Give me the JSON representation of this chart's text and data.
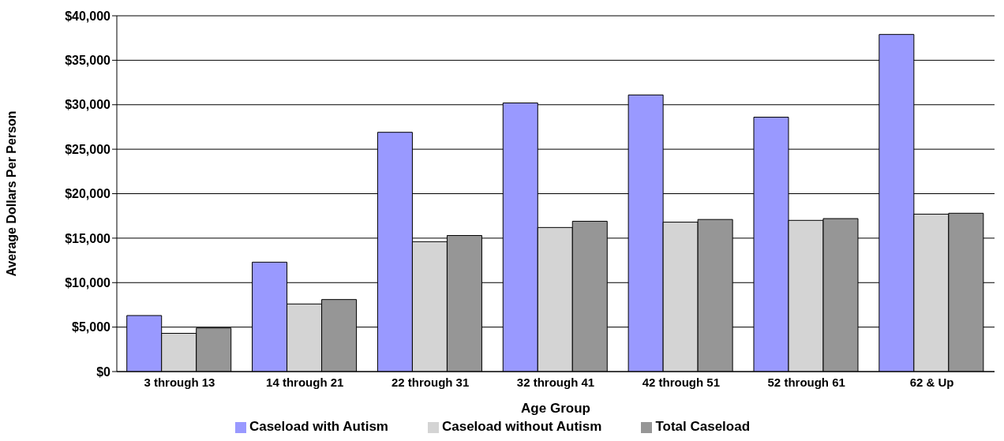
{
  "chart_data": {
    "type": "bar",
    "xlabel": "Age Group",
    "ylabel": "Average Dollars Per Person",
    "categories": [
      "3 through 13",
      "14 through 21",
      "22 through 31",
      "32 through 41",
      "42 through 51",
      "52 through 61",
      "62 & Up"
    ],
    "series": [
      {
        "name": "Caseload with Autism",
        "color": "#9999ff",
        "values": [
          6300,
          12300,
          26900,
          30200,
          31100,
          28600,
          37900
        ]
      },
      {
        "name": "Caseload without Autism",
        "color": "#d4d4d4",
        "values": [
          4300,
          7600,
          14600,
          16200,
          16800,
          17000,
          17700
        ]
      },
      {
        "name": "Total Caseload",
        "color": "#969696",
        "values": [
          4900,
          8100,
          15300,
          16900,
          17100,
          17200,
          17800
        ]
      }
    ],
    "ylim": [
      0,
      40000
    ],
    "yticks": [
      {
        "value": 0,
        "label": "$0"
      },
      {
        "value": 5000,
        "label": "$5,000"
      },
      {
        "value": 10000,
        "label": "$10,000"
      },
      {
        "value": 15000,
        "label": "$15,000"
      },
      {
        "value": 20000,
        "label": "$20,000"
      },
      {
        "value": 25000,
        "label": "$25,000"
      },
      {
        "value": 30000,
        "label": "$30,000"
      },
      {
        "value": 35000,
        "label": "$35,000"
      },
      {
        "value": 40000,
        "label": "$40,000"
      }
    ],
    "grid": "y",
    "legend": "bottom"
  }
}
